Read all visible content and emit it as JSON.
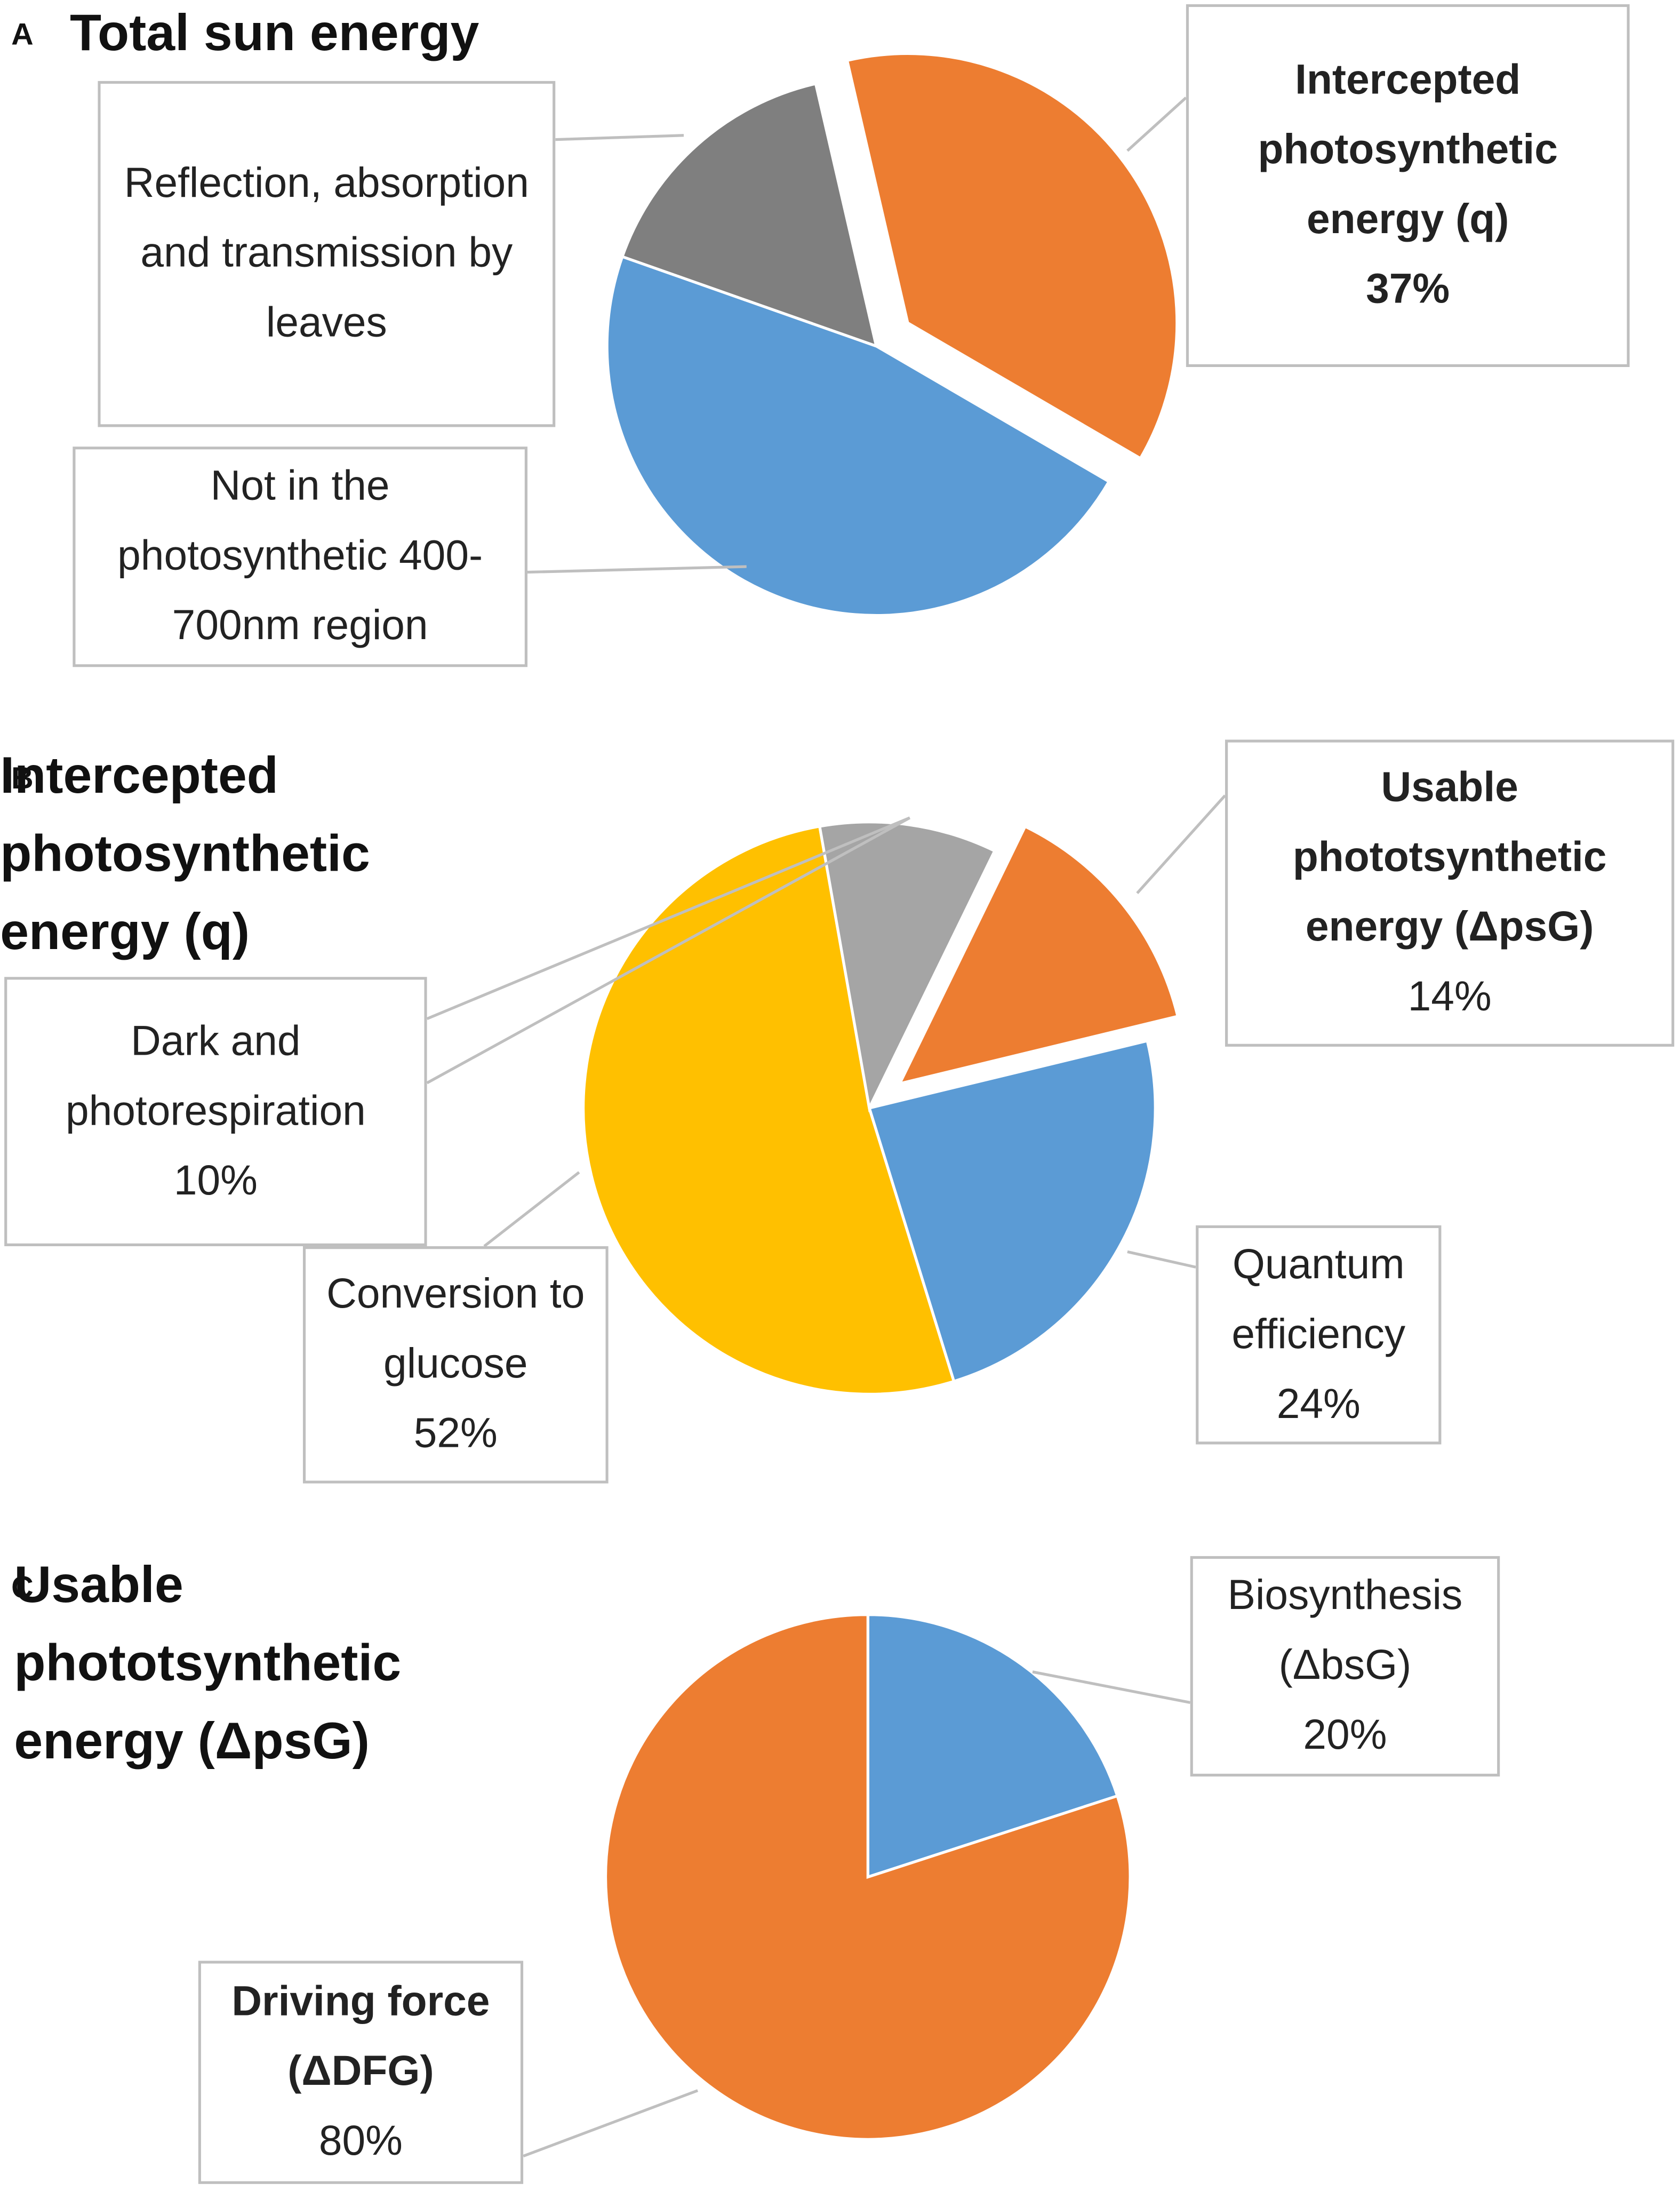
{
  "chart_data": [
    {
      "type": "pie",
      "panel": "A",
      "title": "Total sun energy",
      "categories": [
        "Intercepted photosynthetic energy (q)",
        "Not in the photosynthetic 400-700nm region",
        "Reflection, absorption and transmission by leaves"
      ],
      "values": [
        37,
        47,
        16
      ],
      "value_labels": [
        "37%",
        null,
        null
      ],
      "colors": [
        "#ED7D31",
        "#5B9BD5",
        "#7F7F7F"
      ]
    },
    {
      "type": "pie",
      "panel": "B",
      "title": "Intercepted photosynthetic energy (q)",
      "categories": [
        "Usable phototsynthetic energy (ΔpsG)",
        "Quantum efficiency",
        "Conversion to glucose",
        "Dark and photorespiration"
      ],
      "values": [
        14,
        24,
        52,
        10
      ],
      "value_labels": [
        "14%",
        "24%",
        "52%",
        "10%"
      ],
      "colors": [
        "#ED7D31",
        "#5B9BD5",
        "#FFC000",
        "#A5A5A5"
      ]
    },
    {
      "type": "pie",
      "panel": "C",
      "title": "Usable phototsynthetic energy (ΔpsG)",
      "categories": [
        "Biosynthesis (ΔbsG)",
        "Driving force (ΔDFG)"
      ],
      "values": [
        20,
        80
      ],
      "value_labels": [
        "20%",
        "80%"
      ],
      "colors": [
        "#5B9BD5",
        "#ED7D31"
      ]
    }
  ]
}
